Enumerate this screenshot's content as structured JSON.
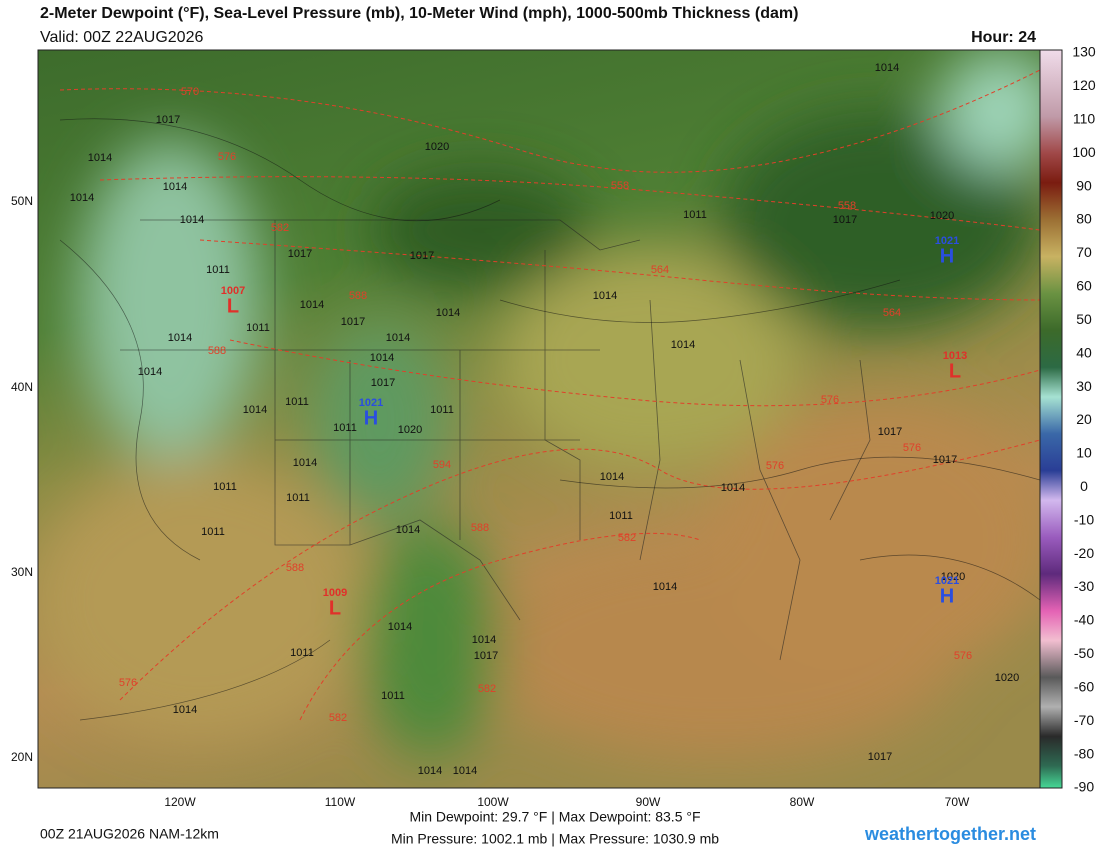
{
  "header": {
    "title": "2-Meter Dewpoint (°F), Sea-Level Pressure (mb), 10-Meter Wind (mph), 1000-500mb Thickness (dam)",
    "valid": "Valid: 00Z 22AUG2026",
    "hour": "Hour: 24"
  },
  "colorbar": {
    "ticks": [
      130,
      120,
      110,
      100,
      90,
      80,
      70,
      60,
      50,
      40,
      30,
      20,
      10,
      0,
      -10,
      -20,
      -30,
      -40,
      -50,
      -60,
      -70,
      -80,
      -90
    ]
  },
  "axes": {
    "lat_labels": [
      "50N",
      "40N",
      "30N",
      "20N"
    ],
    "lon_labels": [
      "120W",
      "110W",
      "100W",
      "90W",
      "80W",
      "70W"
    ]
  },
  "map_labels": {
    "pressure": [
      1017,
      1014,
      1014,
      1014,
      1014,
      1020,
      1017,
      1017,
      1011,
      1014,
      1017,
      1011,
      1014,
      1014,
      1014,
      1014,
      1017,
      1014,
      1011,
      1011,
      1011,
      1020,
      1014,
      1014,
      1014,
      1011,
      1011,
      1014,
      1011,
      1014,
      1014,
      1014,
      1017,
      1011,
      1011,
      1014,
      1014,
      1014,
      1017,
      1020,
      1020,
      1017,
      1017,
      1014,
      1014,
      1014,
      1011,
      1014,
      1020,
      1017,
      1011
    ],
    "thickness": [
      570,
      576,
      558,
      558,
      582,
      564,
      588,
      564,
      588,
      576,
      594,
      576,
      576,
      588,
      582,
      588,
      576,
      582,
      582,
      576
    ],
    "centers": [
      {
        "letter": "H",
        "value": 1021
      },
      {
        "letter": "H",
        "value": 1021
      },
      {
        "letter": "L",
        "value": 1013
      },
      {
        "letter": "L",
        "value": 1009
      },
      {
        "letter": "H",
        "value": 1021
      },
      {
        "letter": "L",
        "value": 1007
      }
    ]
  },
  "footer": {
    "run": "00Z 21AUG2026 NAM-12km",
    "dewpoint_stats": "Min Dewpoint:  29.7 °F | Max Dewpoint:  83.5 °F",
    "pressure_stats": "Min Pressure: 1002.1 mb | Max Pressure: 1030.9 mb",
    "site": "weathertogether.net"
  }
}
